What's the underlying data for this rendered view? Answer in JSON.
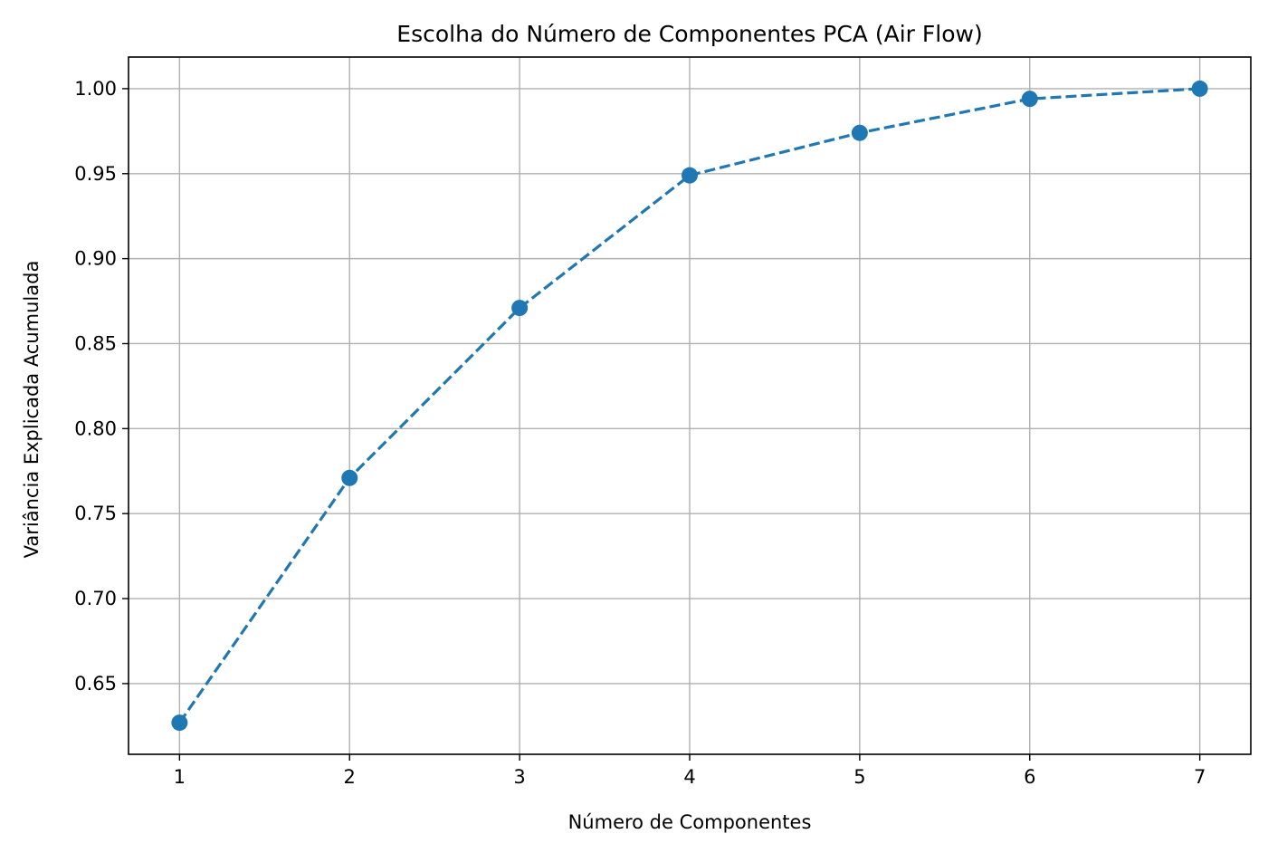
{
  "chart_data": {
    "type": "line",
    "title": "Escolha do Número de Componentes PCA (Air Flow)",
    "xlabel": "Número de Componentes",
    "ylabel": "Variância Explicada Acumulada",
    "x": [
      1,
      2,
      3,
      4,
      5,
      6,
      7
    ],
    "series": [
      {
        "values": [
          0.627,
          0.771,
          0.871,
          0.949,
          0.974,
          0.994,
          1.0
        ],
        "color": "#1f77b4",
        "line_style": "dashed",
        "marker": "circle"
      }
    ],
    "xticks": [
      "1",
      "2",
      "3",
      "4",
      "5",
      "6",
      "7"
    ],
    "yticks": [
      "0.65",
      "0.70",
      "0.75",
      "0.80",
      "0.85",
      "0.90",
      "0.95",
      "1.00"
    ],
    "ytick_values": [
      0.65,
      0.7,
      0.75,
      0.8,
      0.85,
      0.9,
      0.95,
      1.0
    ],
    "xlim": [
      0.7,
      7.3
    ],
    "ylim": [
      0.6084,
      1.0186
    ],
    "grid": true,
    "grid_color": "#b0b0b0"
  }
}
